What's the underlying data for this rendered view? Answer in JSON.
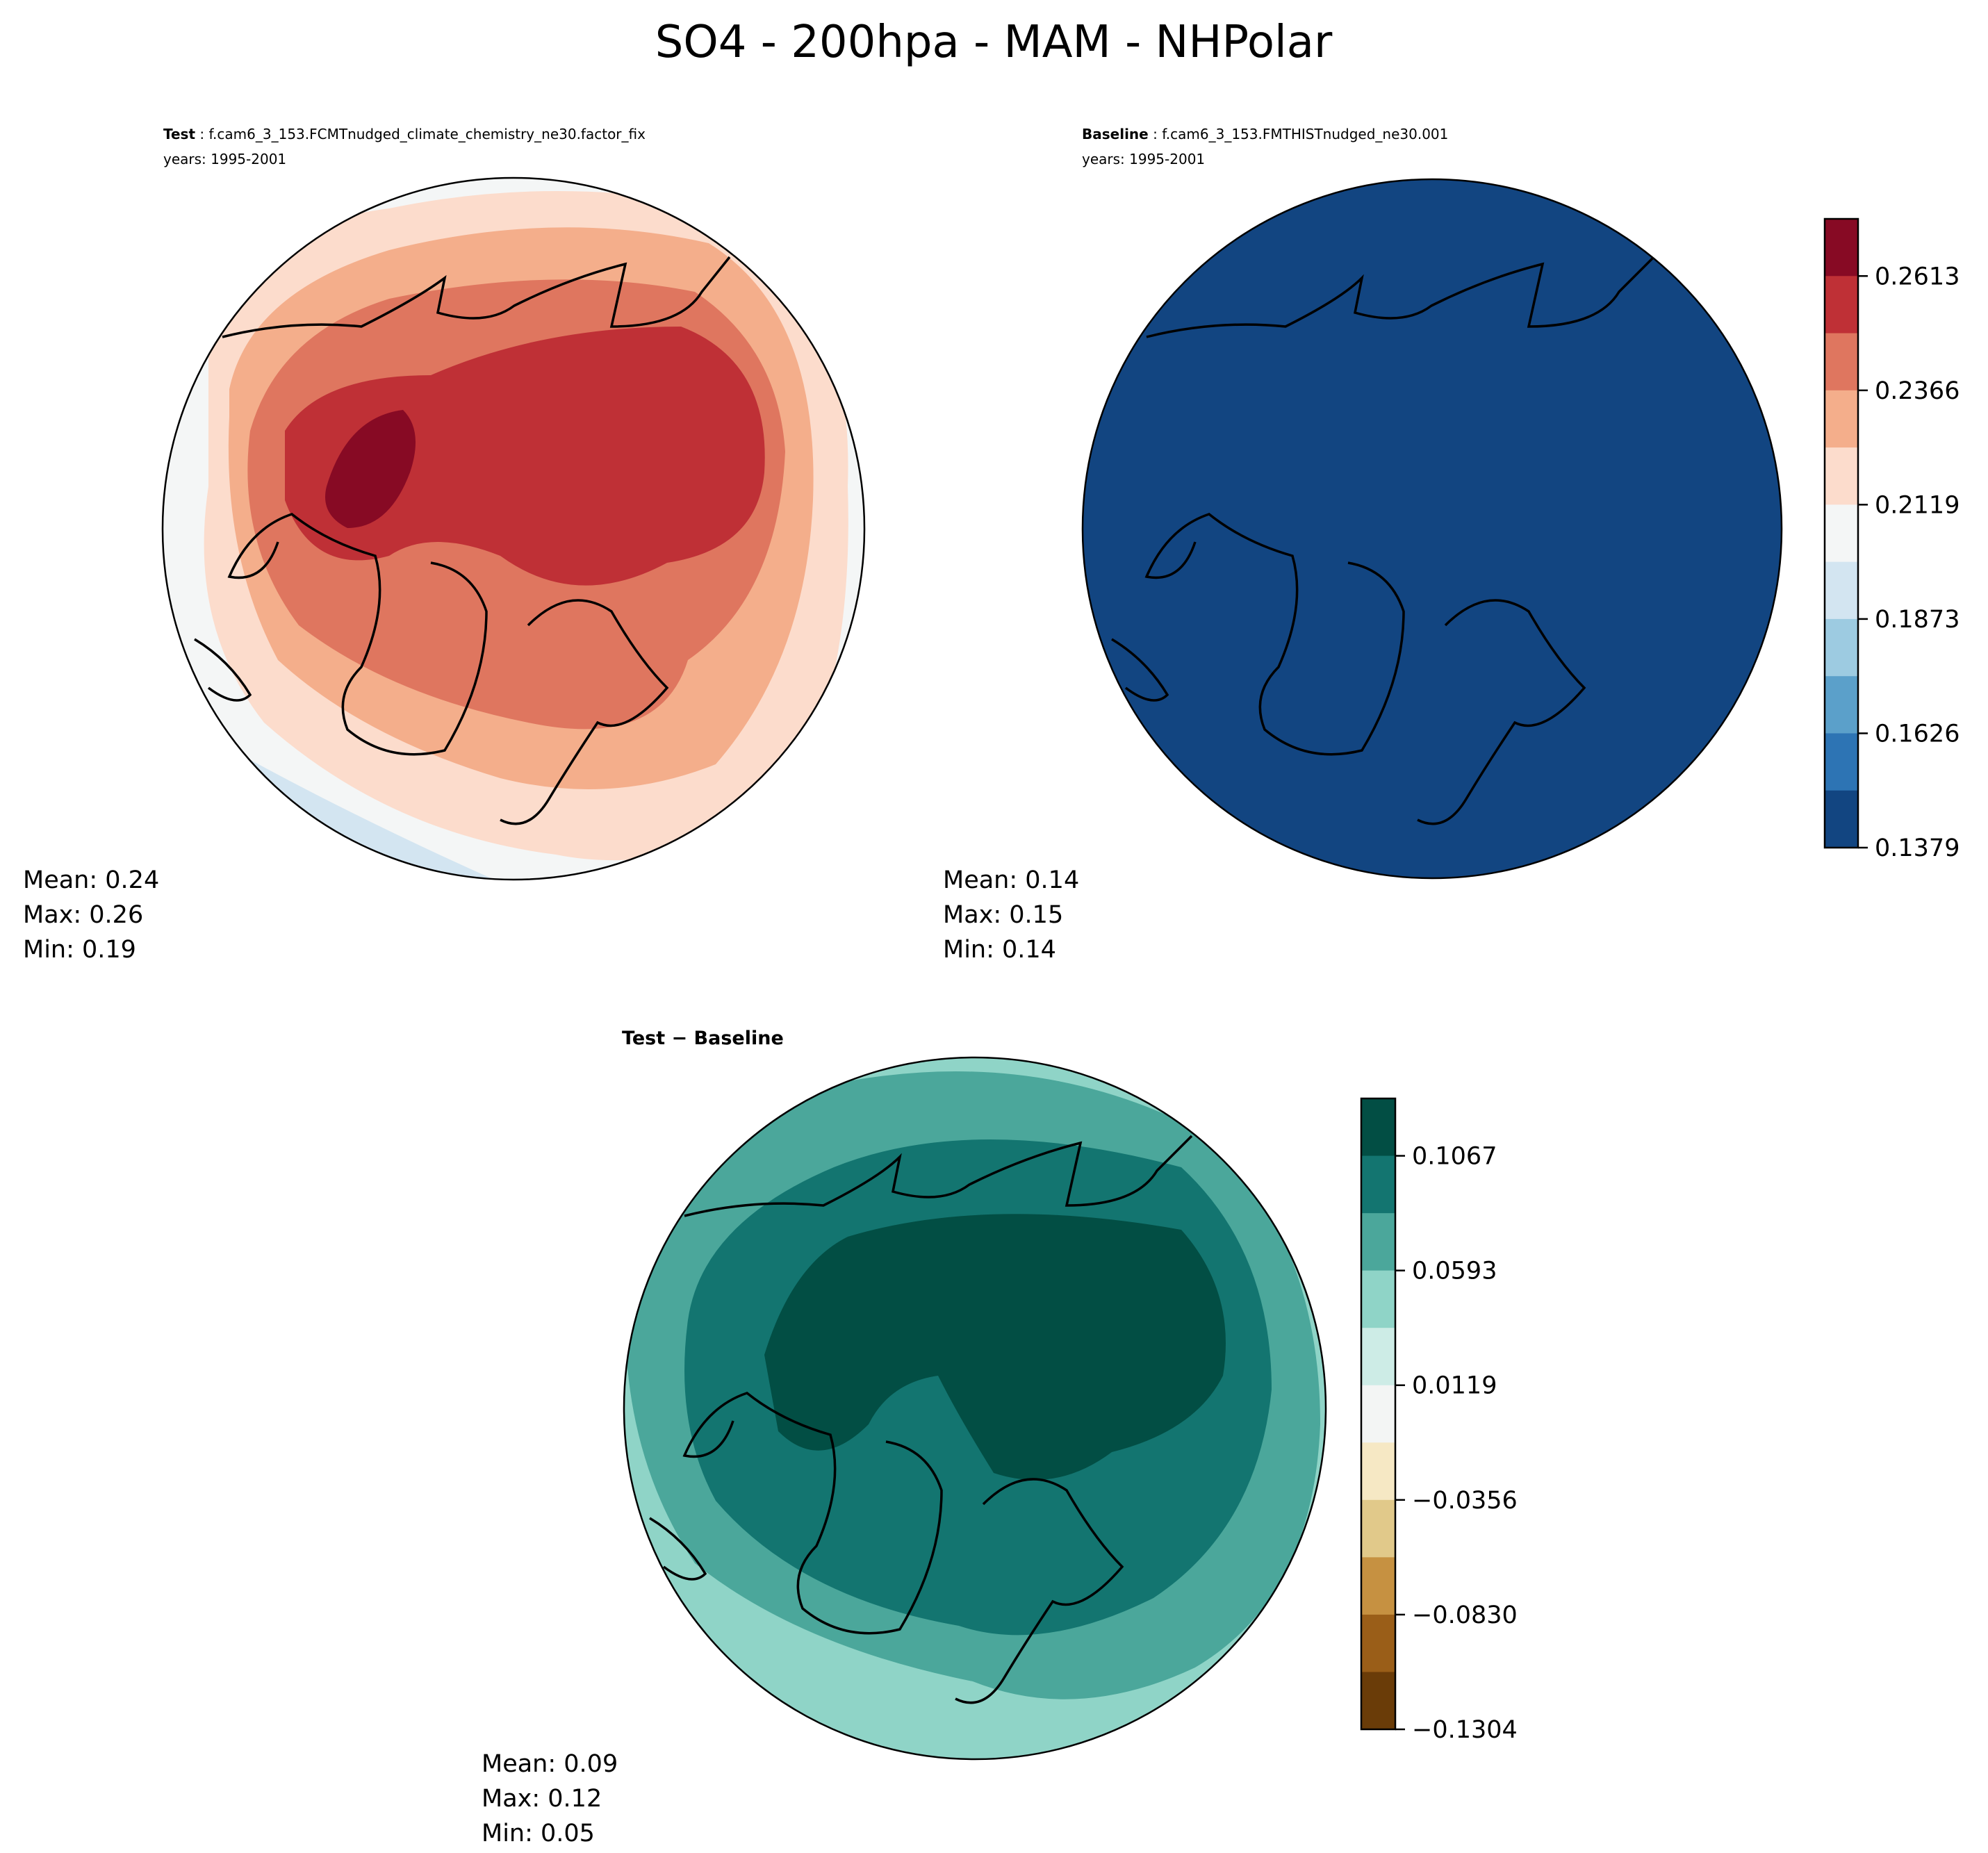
{
  "chart_data": [
    {
      "type": "heatmap",
      "projection": "north-polar-stereographic",
      "title": "SO4 - 200hpa - MAM - NHPolar",
      "panel_label": "Test",
      "case_name": "f.cam6_3_153.FCMTnudged_climate_chemistry_ne30.factor_fix",
      "years": "years: 1995-2001",
      "stats": {
        "mean": "Mean:  0.24",
        "max": "Max:  0.26",
        "min": "Min:  0.19"
      },
      "field_levels": [
        0.2119,
        0.2242,
        0.2366,
        0.2489,
        0.2613,
        0.2736
      ]
    },
    {
      "type": "heatmap",
      "projection": "north-polar-stereographic",
      "panel_label": "Baseline",
      "case_name": "f.cam6_3_153.FMTHISTnudged_ne30.001",
      "years": "years: 1995-2001",
      "stats": {
        "mean": "Mean:  0.14",
        "max": "Max:  0.15",
        "min": "Min:  0.14"
      },
      "colorbar": {
        "ticks": [
          "0.2613",
          "0.2366",
          "0.2119",
          "0.1873",
          "0.1626",
          "0.1379"
        ],
        "colors": [
          "#870a24",
          "#bf3036",
          "#df765f",
          "#f4ae8b",
          "#fcdccc",
          "#f4f6f6",
          "#d3e5f1",
          "#9dcbe1",
          "#5ba0ca",
          "#2d74b4",
          "#124581"
        ]
      }
    },
    {
      "type": "heatmap",
      "projection": "north-polar-stereographic",
      "panel_label": "Test − Baseline",
      "stats": {
        "mean": "Mean:  0.09",
        "max": "Max:  0.12",
        "min": "Min:  0.05"
      },
      "colorbar": {
        "ticks": [
          "0.1067",
          "0.0593",
          "0.0119",
          "−0.0356",
          "−0.0830",
          "−0.1304"
        ],
        "colors": [
          "#024e44",
          "#137570",
          "#4ba79b",
          "#8fd4c7",
          "#cdece6",
          "#f3f5f4",
          "#f6e8c4",
          "#e1c98a",
          "#c69141",
          "#9a5e18",
          "#6a3c08"
        ]
      }
    }
  ]
}
